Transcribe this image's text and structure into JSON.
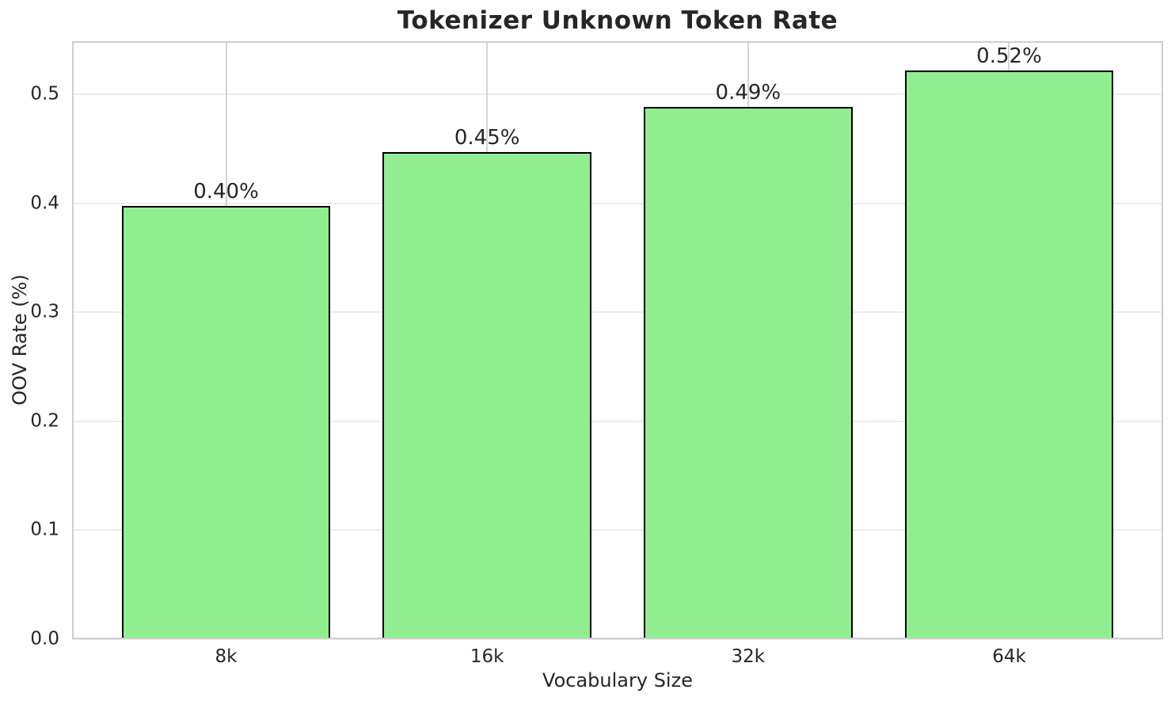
{
  "chart_data": {
    "type": "bar",
    "title": "Tokenizer Unknown Token Rate",
    "xlabel": "Vocabulary Size",
    "ylabel": "OOV Rate (%)",
    "categories": [
      "8k",
      "16k",
      "32k",
      "64k"
    ],
    "values": [
      0.398,
      0.447,
      0.489,
      0.522
    ],
    "bar_labels": [
      "0.40%",
      "0.45%",
      "0.49%",
      "0.52%"
    ],
    "yticks": [
      0.0,
      0.1,
      0.2,
      0.3,
      0.4,
      0.5
    ],
    "ytick_labels": [
      "0.0",
      "0.1",
      "0.2",
      "0.3",
      "0.4",
      "0.5"
    ],
    "ylim": [
      0,
      0.549
    ],
    "xlim": [
      -0.59,
      3.59
    ],
    "bar_width": 0.8,
    "grid": true,
    "legend": false,
    "colors": {
      "bar_fill": "#90EE90",
      "bar_edge": "#000000",
      "grid_h": "#ececec",
      "grid_v": "#d4d4d4",
      "spine": "#cfcfcf",
      "text": "#262626"
    }
  }
}
